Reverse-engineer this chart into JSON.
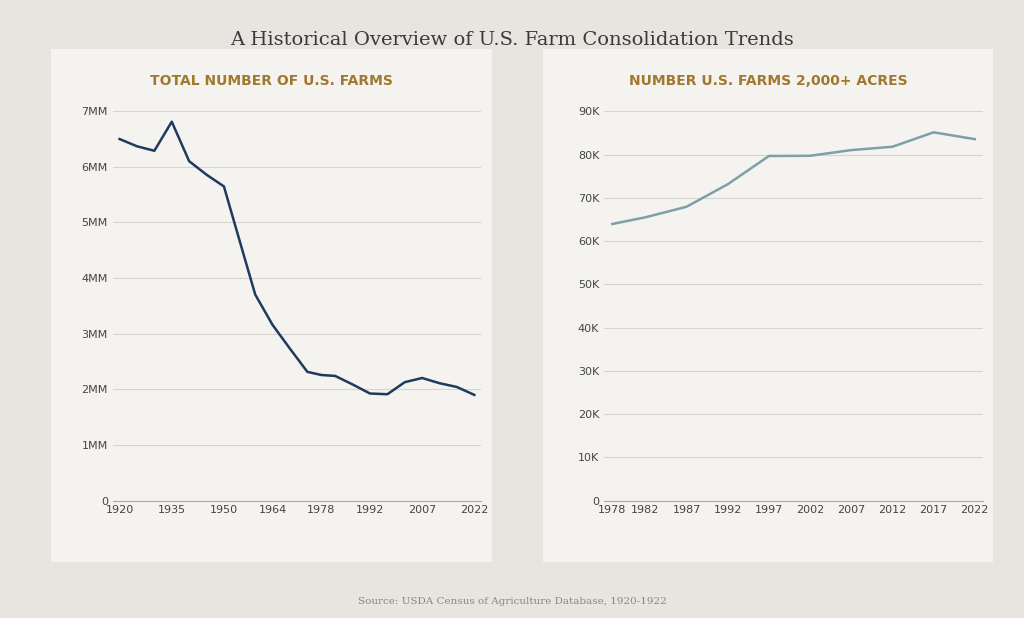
{
  "title": "A Historical Overview of U.S. Farm Consolidation Trends",
  "source": "Source: USDA Census of Agriculture Database, 1920-1922",
  "background_color": "#e8e4df",
  "panel_color": "#f5f3f0",
  "title_color": "#3a3a3a",
  "subtitle_color": "#a07830",
  "grid_color": "#d8d4ce",
  "left": {
    "title": "TOTAL NUMBER OF U.S. FARMS",
    "x": [
      1920,
      1925,
      1930,
      1935,
      1940,
      1945,
      1950,
      1954,
      1959,
      1964,
      1969,
      1974,
      1978,
      1982,
      1987,
      1992,
      1997,
      2002,
      2007,
      2012,
      2017,
      2022
    ],
    "y": [
      6500000,
      6370000,
      6289000,
      6812000,
      6102000,
      5859000,
      5648000,
      4782000,
      3704000,
      3157000,
      2730000,
      2314000,
      2258000,
      2241000,
      2088000,
      1925000,
      1912000,
      2129000,
      2204000,
      2110000,
      2042000,
      1900000
    ],
    "line_color": "#1e3a5f",
    "ylim": [
      0,
      7000000
    ],
    "yticks": [
      0,
      1000000,
      2000000,
      3000000,
      4000000,
      5000000,
      6000000,
      7000000
    ],
    "ytick_labels": [
      "0",
      "1MM",
      "2MM",
      "3MM",
      "4MM",
      "5MM",
      "6MM",
      "7MM"
    ],
    "xticks": [
      1920,
      1935,
      1950,
      1964,
      1978,
      1992,
      2007,
      2022
    ]
  },
  "right": {
    "title": "NUMBER U.S. FARMS 2,000+ ACRES",
    "x": [
      1978,
      1982,
      1987,
      1992,
      1997,
      2002,
      2007,
      2012,
      2017,
      2022
    ],
    "y": [
      63941,
      65480,
      67918,
      73115,
      79652,
      79706,
      81017,
      81791,
      85127,
      83548
    ],
    "line_color": "#7da0a8",
    "ylim": [
      0,
      90000
    ],
    "yticks": [
      0,
      10000,
      20000,
      30000,
      40000,
      50000,
      60000,
      70000,
      80000,
      90000
    ],
    "ytick_labels": [
      "0",
      "10K",
      "20K",
      "30K",
      "40K",
      "50K",
      "60K",
      "70K",
      "80K",
      "90K"
    ],
    "xticks": [
      1978,
      1982,
      1987,
      1992,
      1997,
      2002,
      2007,
      2012,
      2017,
      2022
    ]
  }
}
